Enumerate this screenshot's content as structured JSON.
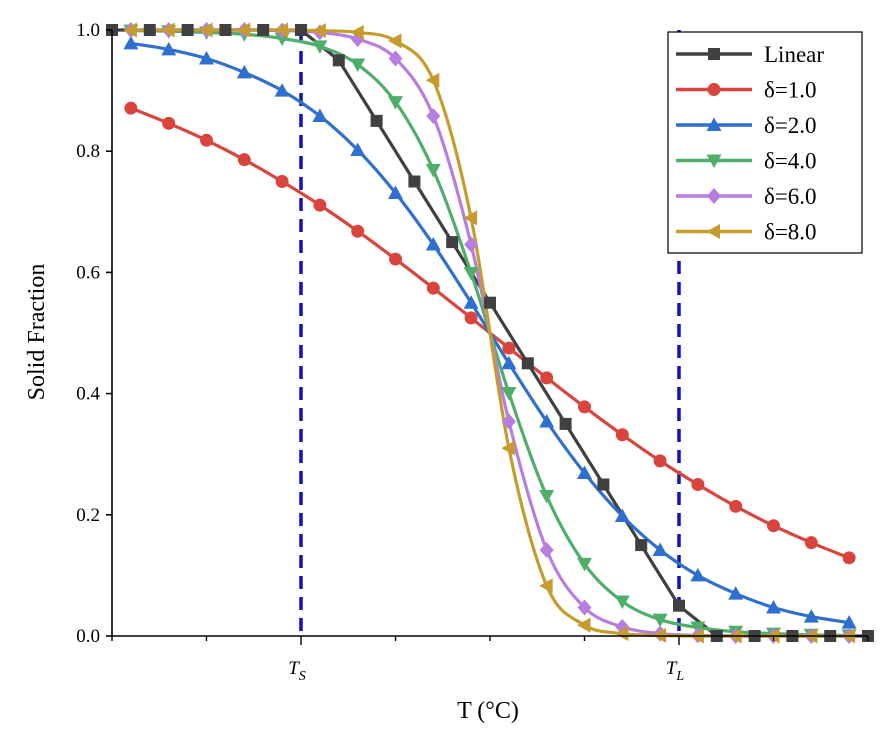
{
  "chart_data": {
    "type": "line",
    "title": "",
    "xlabel": "T (°C)",
    "ylabel": "Solid Fraction",
    "xlim": [
      -1.0,
      1.0
    ],
    "ylim": [
      0.0,
      1.0
    ],
    "grid": false,
    "legend_position": "top-right",
    "x_ticks": [
      {
        "value": -0.5,
        "main": "T",
        "sub": "S"
      },
      {
        "value": 0.5,
        "main": "T",
        "sub": "L"
      }
    ],
    "y_ticks": [
      "0.0",
      "0.2",
      "0.4",
      "0.6",
      "0.8",
      "1.0"
    ],
    "reference_lines": [
      {
        "x": -0.5,
        "style": "dashed",
        "color": "#1010c8",
        "label": "T_S"
      },
      {
        "x": 0.5,
        "style": "dashed",
        "color": "#1010c8",
        "label": "T_L"
      }
    ],
    "series": [
      {
        "name": "Linear",
        "color": "#404040",
        "marker": "square",
        "x": [
          -1.0,
          -0.9,
          -0.8,
          -0.7,
          -0.6,
          -0.5,
          -0.4,
          -0.3,
          -0.2,
          -0.1,
          0.0,
          0.1,
          0.2,
          0.3,
          0.4,
          0.5,
          0.6,
          0.7,
          0.8,
          0.9,
          1.0
        ],
        "values": [
          1.0,
          1.0,
          1.0,
          1.0,
          1.0,
          1.0,
          0.95,
          0.85,
          0.75,
          0.65,
          0.55,
          0.45,
          0.35,
          0.25,
          0.15,
          0.05,
          0.0,
          0.0,
          0.0,
          0.0,
          0.0
        ]
      },
      {
        "name": "δ=1.0",
        "color": "#d9453d",
        "marker": "circle",
        "x": [
          -0.95,
          -0.85,
          -0.75,
          -0.65,
          -0.55,
          -0.45,
          -0.35,
          -0.25,
          -0.15,
          -0.05,
          0.05,
          0.15,
          0.25,
          0.35,
          0.45,
          0.55,
          0.65,
          0.75,
          0.85,
          0.95
        ],
        "values": [
          0.871,
          0.846,
          0.818,
          0.786,
          0.75,
          0.711,
          0.668,
          0.622,
          0.574,
          0.525,
          0.475,
          0.426,
          0.378,
          0.332,
          0.289,
          0.25,
          0.214,
          0.182,
          0.154,
          0.129
        ]
      },
      {
        "name": "δ=2.0",
        "color": "#2f6fd0",
        "marker": "triangle-up",
        "x": [
          -0.95,
          -0.85,
          -0.75,
          -0.65,
          -0.55,
          -0.45,
          -0.35,
          -0.25,
          -0.15,
          -0.05,
          0.05,
          0.15,
          0.25,
          0.35,
          0.45,
          0.55,
          0.65,
          0.75,
          0.85,
          0.95
        ],
        "values": [
          0.978,
          0.968,
          0.953,
          0.93,
          0.9,
          0.858,
          0.802,
          0.731,
          0.646,
          0.55,
          0.45,
          0.354,
          0.269,
          0.198,
          0.142,
          0.1,
          0.07,
          0.047,
          0.032,
          0.022
        ]
      },
      {
        "name": "δ=4.0",
        "color": "#4fae6a",
        "marker": "triangle-down",
        "x": [
          -0.95,
          -0.85,
          -0.75,
          -0.65,
          -0.55,
          -0.45,
          -0.35,
          -0.25,
          -0.15,
          -0.05,
          0.05,
          0.15,
          0.25,
          0.35,
          0.45,
          0.55,
          0.65,
          0.75,
          0.85,
          0.95
        ],
        "values": [
          0.999,
          0.998,
          0.996,
          0.993,
          0.986,
          0.973,
          0.943,
          0.881,
          0.769,
          0.599,
          0.401,
          0.231,
          0.119,
          0.057,
          0.027,
          0.014,
          0.007,
          0.004,
          0.002,
          0.001
        ]
      },
      {
        "name": "δ=6.0",
        "color": "#b77de0",
        "marker": "diamond",
        "x": [
          -0.95,
          -0.85,
          -0.75,
          -0.65,
          -0.55,
          -0.45,
          -0.35,
          -0.25,
          -0.15,
          -0.05,
          0.05,
          0.15,
          0.25,
          0.35,
          0.45,
          0.55,
          0.65,
          0.75,
          0.85,
          0.95
        ],
        "values": [
          1.0,
          1.0,
          1.0,
          1.0,
          0.999,
          0.996,
          0.985,
          0.953,
          0.858,
          0.646,
          0.354,
          0.142,
          0.047,
          0.015,
          0.004,
          0.001,
          0.0,
          0.0,
          0.0,
          0.0
        ]
      },
      {
        "name": "δ=8.0",
        "color": "#c79c2e",
        "marker": "triangle-left",
        "x": [
          -0.95,
          -0.85,
          -0.75,
          -0.65,
          -0.55,
          -0.45,
          -0.35,
          -0.25,
          -0.15,
          -0.05,
          0.05,
          0.15,
          0.25,
          0.35,
          0.45,
          0.55,
          0.65,
          0.75,
          0.85,
          0.95
        ],
        "values": [
          1.0,
          1.0,
          1.0,
          1.0,
          1.0,
          0.999,
          0.996,
          0.982,
          0.917,
          0.69,
          0.31,
          0.083,
          0.018,
          0.004,
          0.001,
          0.0,
          0.0,
          0.0,
          0.0,
          0.0
        ]
      }
    ]
  }
}
